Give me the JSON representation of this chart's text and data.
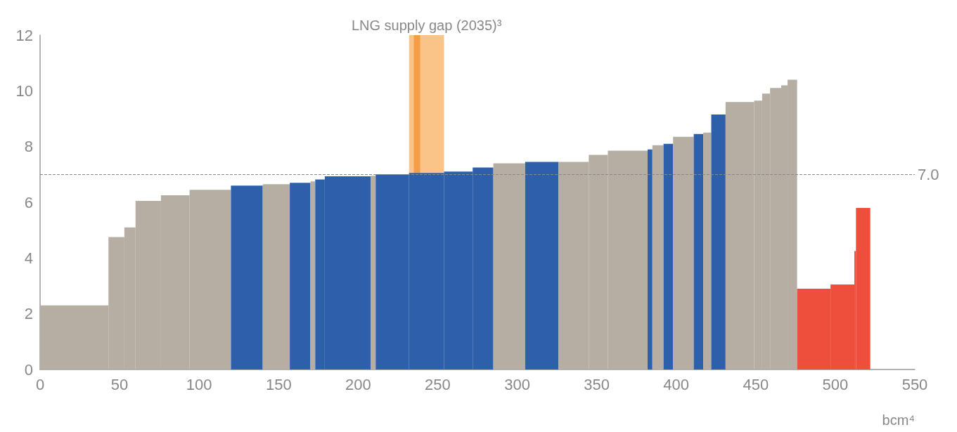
{
  "chart_data": {
    "type": "histogram",
    "xlabel": "bcm⁴",
    "bins": [
      0,
      43,
      53,
      60,
      76,
      94,
      120,
      140,
      157,
      170,
      173,
      179,
      208,
      211,
      232,
      254,
      272,
      285,
      305,
      326,
      345,
      357,
      382,
      385,
      392,
      398,
      411,
      417,
      422,
      431,
      449,
      454,
      459,
      466,
      470,
      476,
      497,
      512,
      513,
      522
    ],
    "values": [
      2.3,
      4.75,
      5.1,
      6.05,
      6.25,
      6.45,
      6.6,
      6.65,
      6.7,
      6.75,
      6.82,
      6.93,
      6.95,
      7.0,
      7.05,
      7.1,
      7.25,
      7.4,
      7.45,
      7.45,
      7.7,
      7.85,
      7.9,
      8.05,
      8.1,
      8.35,
      8.45,
      8.5,
      9.15,
      9.6,
      9.65,
      9.9,
      10.1,
      10.2,
      10.4,
      2.9,
      3.05,
      4.25,
      5.8
    ],
    "colors": [
      "#b6ada3",
      "#b6ada3",
      "#b6ada3",
      "#b6ada3",
      "#b6ada3",
      "#b6ada3",
      "#2d5fab",
      "#b6ada3",
      "#2d5fab",
      "#b6ada3",
      "#2d5fab",
      "#2d5fab",
      "#b6ada3",
      "#2d5fab",
      "#2d5fab",
      "#2d5fab",
      "#2d5fab",
      "#b6ada3",
      "#2d5fab",
      "#b6ada3",
      "#b6ada3",
      "#b6ada3",
      "#2d5fab",
      "#b6ada3",
      "#2d5fab",
      "#b6ada3",
      "#2d5fab",
      "#b6ada3",
      "#2d5fab",
      "#b6ada3",
      "#b6ada3",
      "#b6ada3",
      "#b6ada3",
      "#b6ada3",
      "#b6ada3",
      "#ee4e3c",
      "#ee4e3c",
      "#ee4e3c",
      "#ee4e3c"
    ],
    "xlim": [
      0,
      550
    ],
    "xticks": [
      0,
      50,
      100,
      150,
      200,
      250,
      300,
      350,
      400,
      450,
      500,
      550
    ],
    "ylim": [
      0,
      12
    ],
    "yticks": [
      0,
      2,
      4,
      6,
      8,
      10,
      12
    ],
    "grid": false,
    "bands": [
      {
        "axis": "x",
        "from": 232,
        "to": 254,
        "label": "LNG supply gap (2035)³",
        "color": "#f7a54a"
      },
      {
        "axis": "x",
        "from": 235,
        "to": 239,
        "color": "#f08a24"
      }
    ],
    "ref_lines": [
      {
        "axis": "y",
        "value": 7.0,
        "label": "7.0",
        "line_style": "dashed",
        "color": "#888888"
      }
    ]
  }
}
